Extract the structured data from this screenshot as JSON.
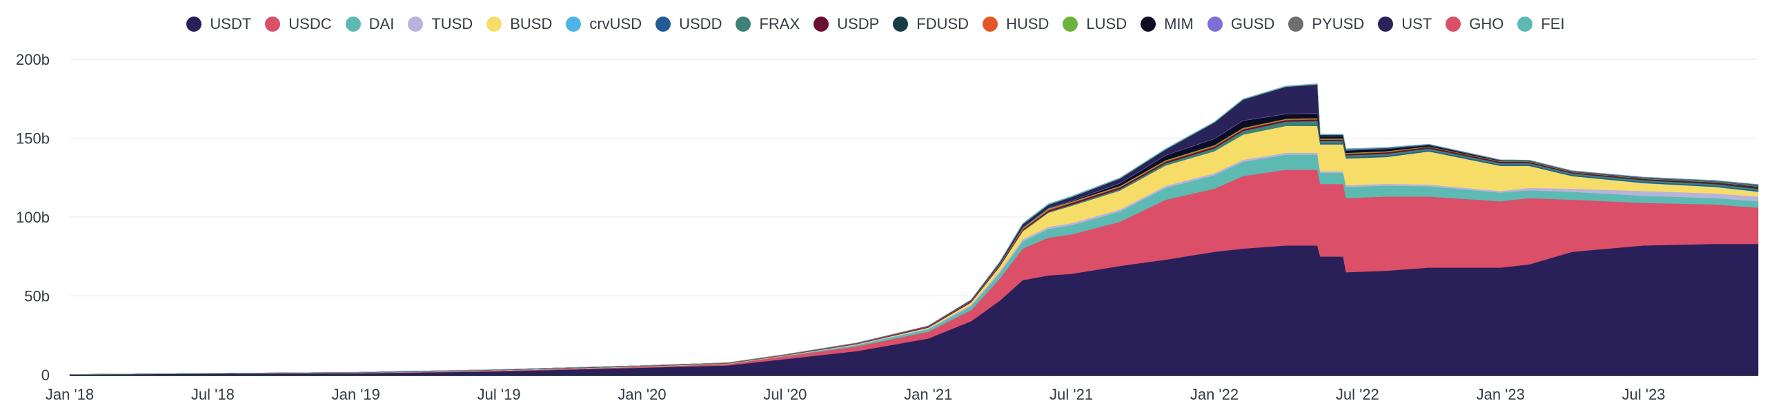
{
  "chart_data": {
    "type": "area",
    "stacked": true,
    "title": "",
    "xlabel": "",
    "ylabel": "",
    "ylim": [
      0,
      200
    ],
    "y_unit": "b",
    "grid": true,
    "legend_position": "top-center",
    "x_ticks": [
      "Jan '18",
      "Jul '18",
      "Jan '19",
      "Jul '19",
      "Jan '20",
      "Jul '20",
      "Jan '21",
      "Jul '21",
      "Jan '22",
      "Jul '22",
      "Jan '23",
      "Jul '23"
    ],
    "y_ticks": [
      {
        "value": 0,
        "label": "0"
      },
      {
        "value": 50,
        "label": "50b"
      },
      {
        "value": 100,
        "label": "100b"
      },
      {
        "value": 150,
        "label": "150b"
      },
      {
        "value": 200,
        "label": "200b"
      }
    ],
    "x_range": [
      2018.0,
      2023.9
    ],
    "x": [
      2018.0,
      2018.5,
      2019.0,
      2019.5,
      2020.0,
      2020.3,
      2020.5,
      2020.75,
      2021.0,
      2021.15,
      2021.25,
      2021.33,
      2021.42,
      2021.5,
      2021.67,
      2021.83,
      2022.0,
      2022.1,
      2022.25,
      2022.36,
      2022.37,
      2022.45,
      2022.46,
      2022.6,
      2022.75,
      2023.0,
      2023.1,
      2023.25,
      2023.5,
      2023.75,
      2023.9
    ],
    "series": [
      {
        "name": "USDT",
        "color": "#29205a",
        "values": [
          0.2,
          0.8,
          0.9,
          2.2,
          4.5,
          6,
          10,
          15,
          23,
          34,
          47,
          60,
          63,
          64,
          69,
          73,
          78,
          80,
          82,
          82,
          75,
          75,
          65,
          66,
          68,
          68,
          70,
          78,
          82,
          83,
          83
        ]
      },
      {
        "name": "USDC",
        "color": "#dc4f69",
        "values": [
          0,
          0,
          0.2,
          0.4,
          0.5,
          0.8,
          1.8,
          3,
          4.3,
          7,
          14,
          20,
          24,
          25,
          28,
          38,
          40,
          46,
          48,
          48,
          46,
          46,
          47,
          47,
          45,
          42,
          42,
          33,
          27,
          25,
          23
        ]
      },
      {
        "name": "DAI",
        "color": "#5cbab3",
        "values": [
          0,
          0.1,
          0.1,
          0.1,
          0.1,
          0.1,
          0.2,
          0.8,
          1.5,
          2.5,
          3.5,
          4.5,
          5.5,
          5.8,
          6.5,
          7.5,
          8.5,
          9,
          9.5,
          9.5,
          7,
          7,
          7,
          7,
          6.5,
          5.5,
          5,
          5,
          4.5,
          4,
          4
        ]
      },
      {
        "name": "TUSD",
        "color": "#b8b2dd",
        "values": [
          0,
          0,
          0.2,
          0.2,
          0.1,
          0.1,
          0.2,
          0.4,
          0.5,
          0.9,
          1.2,
          1.5,
          1.3,
          1.3,
          1.3,
          1.3,
          1.3,
          1.3,
          1.3,
          1.3,
          1.1,
          1.1,
          1.1,
          1.1,
          1.1,
          1,
          1.5,
          2,
          3,
          3,
          3
        ]
      },
      {
        "name": "BUSD",
        "color": "#f6dd68",
        "values": [
          0,
          0,
          0,
          0.1,
          0.2,
          0.2,
          0.2,
          0.3,
          0.6,
          1.5,
          3,
          5,
          9,
          11,
          12,
          13,
          14,
          16,
          17,
          17,
          17,
          17,
          17,
          17,
          21,
          16,
          14,
          8,
          5,
          4,
          3
        ]
      },
      {
        "name": "crvUSD",
        "color": "#4db5e5",
        "values": [
          0,
          0,
          0,
          0,
          0,
          0,
          0,
          0,
          0,
          0,
          0,
          0,
          0,
          0,
          0,
          0,
          0,
          0,
          0,
          0,
          0,
          0,
          0,
          0,
          0,
          0,
          0,
          0,
          0.1,
          0.2,
          0.2
        ]
      },
      {
        "name": "USDD",
        "color": "#235b94",
        "values": [
          0,
          0,
          0,
          0,
          0,
          0,
          0,
          0,
          0,
          0,
          0,
          0,
          0,
          0,
          0,
          0,
          0,
          0,
          0,
          0.4,
          0.7,
          0.7,
          0.7,
          0.7,
          0.7,
          0.7,
          0.7,
          0.7,
          0.7,
          0.7,
          0.7
        ]
      },
      {
        "name": "FRAX",
        "color": "#3c8375",
        "values": [
          0,
          0,
          0,
          0,
          0,
          0,
          0,
          0,
          0.1,
          0.1,
          0.2,
          0.3,
          0.5,
          0.7,
          1,
          1.3,
          1.8,
          2.3,
          2.7,
          2.7,
          1.4,
          1.4,
          1.3,
          1.3,
          1.2,
          1,
          1,
          1,
          1,
          1,
          1
        ]
      },
      {
        "name": "USDP",
        "color": "#6a1030",
        "values": [
          0,
          0,
          0.1,
          0.1,
          0.2,
          0.2,
          0.2,
          0.3,
          0.4,
          0.5,
          0.6,
          0.8,
          0.9,
          1,
          1,
          1,
          1,
          1,
          1,
          1,
          0.9,
          0.9,
          0.9,
          0.9,
          0.9,
          0.9,
          0.8,
          0.7,
          0.6,
          0.6,
          0.6
        ]
      },
      {
        "name": "FDUSD",
        "color": "#173c45",
        "values": [
          0,
          0,
          0,
          0,
          0,
          0,
          0,
          0,
          0,
          0,
          0,
          0,
          0,
          0,
          0,
          0,
          0,
          0,
          0,
          0,
          0,
          0,
          0,
          0,
          0,
          0,
          0,
          0,
          0.3,
          0.5,
          0.8
        ]
      },
      {
        "name": "HUSD",
        "color": "#e45528",
        "values": [
          0,
          0,
          0,
          0.1,
          0.1,
          0.2,
          0.2,
          0.2,
          0.3,
          0.4,
          0.5,
          0.6,
          0.6,
          0.5,
          0.5,
          0.5,
          0.5,
          0.5,
          0.4,
          0.4,
          0.3,
          0.3,
          0.3,
          0.3,
          0.1,
          0.05,
          0.05,
          0.05,
          0.05,
          0.05,
          0.05
        ]
      },
      {
        "name": "LUSD",
        "color": "#6bb33c",
        "values": [
          0,
          0,
          0,
          0,
          0,
          0,
          0,
          0,
          0,
          0,
          0.2,
          0.5,
          0.6,
          0.5,
          0.5,
          0.5,
          0.5,
          0.5,
          0.4,
          0.4,
          0.4,
          0.4,
          0.4,
          0.4,
          0.3,
          0.3,
          0.3,
          0.3,
          0.3,
          0.3,
          0.3
        ]
      },
      {
        "name": "MIM",
        "color": "#0c0c24",
        "values": [
          0,
          0,
          0,
          0,
          0,
          0,
          0,
          0,
          0,
          0,
          0,
          0,
          0,
          0.3,
          1.5,
          3,
          4,
          4.5,
          3,
          3,
          1.5,
          1.5,
          1.5,
          1.5,
          0.8,
          0.4,
          0.3,
          0.2,
          0.2,
          0.2,
          0.2
        ]
      },
      {
        "name": "GUSD",
        "color": "#7a70d6",
        "values": [
          0,
          0,
          0.1,
          0.1,
          0.1,
          0.1,
          0.1,
          0.1,
          0.1,
          0.1,
          0.1,
          0.2,
          0.3,
          0.3,
          0.3,
          0.3,
          0.3,
          0.3,
          0.3,
          0.3,
          0.3,
          0.3,
          0.3,
          0.3,
          0.3,
          0.3,
          0.3,
          0.3,
          0.3,
          0.3,
          0.3
        ]
      },
      {
        "name": "PYUSD",
        "color": "#6e6e6e",
        "values": [
          0,
          0,
          0,
          0,
          0,
          0,
          0,
          0,
          0,
          0,
          0,
          0,
          0,
          0,
          0,
          0,
          0,
          0,
          0,
          0,
          0,
          0,
          0,
          0,
          0,
          0,
          0,
          0,
          0.1,
          0.2,
          0.3
        ]
      },
      {
        "name": "UST",
        "color": "#2a2359",
        "values": [
          0,
          0,
          0,
          0,
          0,
          0,
          0,
          0.1,
          0.2,
          0.5,
          1,
          2,
          2.1,
          2.2,
          2.8,
          3.5,
          10,
          13,
          17,
          18,
          0.5,
          0.5,
          0.3,
          0.3,
          0.2,
          0.1,
          0.1,
          0.1,
          0.1,
          0.1,
          0.1
        ]
      },
      {
        "name": "GHO",
        "color": "#dc4f69",
        "values": [
          0,
          0,
          0,
          0,
          0,
          0,
          0,
          0,
          0,
          0,
          0,
          0,
          0,
          0,
          0,
          0,
          0,
          0,
          0,
          0,
          0,
          0,
          0,
          0,
          0,
          0,
          0,
          0,
          0.03,
          0.05,
          0.05
        ]
      },
      {
        "name": "FEI",
        "color": "#5cbab3",
        "values": [
          0,
          0,
          0,
          0,
          0,
          0,
          0,
          0,
          0,
          0,
          0.5,
          0.6,
          0.6,
          0.6,
          0.5,
          0.5,
          0.5,
          0.5,
          0.5,
          0.5,
          0.5,
          0.5,
          0.5,
          0.4,
          0.1,
          0.05,
          0.05,
          0.05,
          0.05,
          0.05,
          0.05
        ]
      }
    ]
  }
}
